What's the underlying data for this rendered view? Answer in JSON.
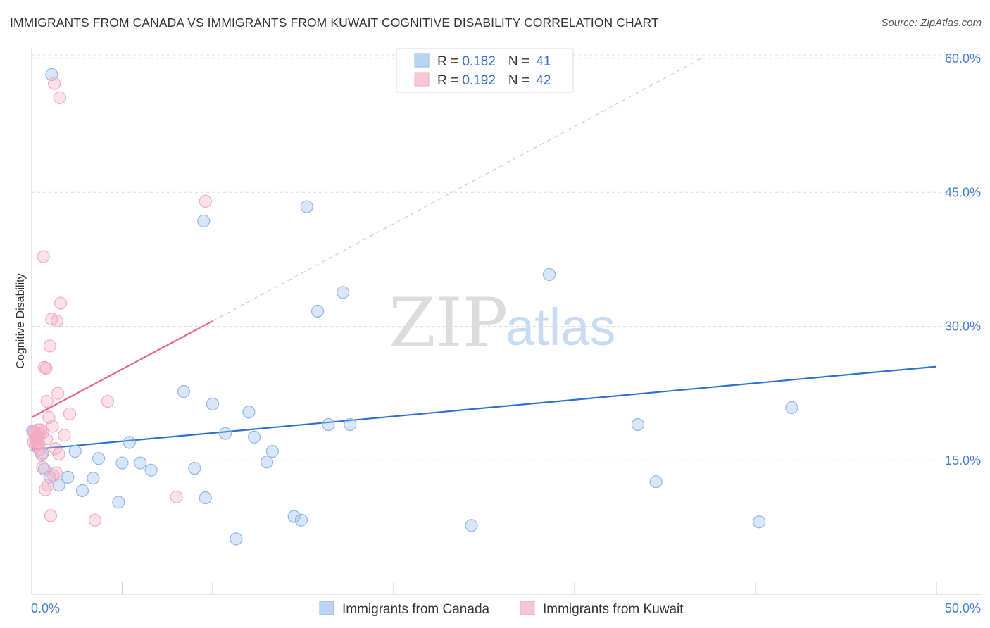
{
  "chart_data": {
    "type": "scatter",
    "title": "IMMIGRANTS FROM CANADA VS IMMIGRANTS FROM KUWAIT COGNITIVE DISABILITY CORRELATION CHART",
    "source": "Source: ZipAtlas.com",
    "xlabel": "",
    "ylabel": "Cognitive Disability",
    "xlim": [
      0,
      50
    ],
    "ylim": [
      0,
      63
    ],
    "x_tick_labels": [
      "0.0%",
      "50.0%"
    ],
    "y_ticks": [
      15,
      30,
      45,
      60
    ],
    "y_tick_labels": [
      "15.0%",
      "30.0%",
      "45.0%",
      "60.0%"
    ],
    "grid": true,
    "watermark": {
      "zip": "ZIP",
      "atlas": "atlas"
    },
    "legend_stats": [
      {
        "r_label": "R = ",
        "r_value": "0.182",
        "n_label": "N = ",
        "n_value": "41"
      },
      {
        "r_label": "R = ",
        "r_value": "0.192",
        "n_label": "N = ",
        "n_value": "42"
      }
    ],
    "series": [
      {
        "name": "Immigrants from Canada",
        "color": "#8fb8ea",
        "line_color": "#2f6fce",
        "trend": {
          "x0": 0,
          "y0": 16.2,
          "x1": 50,
          "y1": 25.5
        },
        "points": [
          [
            0.1,
            18.2
          ],
          [
            0.3,
            17.6
          ],
          [
            0.6,
            15.8
          ],
          [
            0.7,
            14.0
          ],
          [
            1.0,
            13.1
          ],
          [
            1.1,
            58.2
          ],
          [
            1.5,
            12.2
          ],
          [
            2.0,
            13.1
          ],
          [
            2.4,
            16.0
          ],
          [
            2.8,
            11.6
          ],
          [
            3.4,
            13.0
          ],
          [
            3.7,
            15.2
          ],
          [
            4.8,
            10.3
          ],
          [
            5.0,
            14.7
          ],
          [
            5.4,
            17.0
          ],
          [
            6.0,
            14.7
          ],
          [
            6.6,
            13.9
          ],
          [
            8.4,
            22.7
          ],
          [
            9.0,
            14.1
          ],
          [
            9.5,
            41.8
          ],
          [
            9.6,
            10.8
          ],
          [
            10.0,
            21.3
          ],
          [
            10.7,
            18.0
          ],
          [
            11.3,
            6.2
          ],
          [
            12.0,
            20.4
          ],
          [
            12.3,
            17.6
          ],
          [
            13.0,
            14.8
          ],
          [
            13.3,
            16.0
          ],
          [
            14.5,
            8.7
          ],
          [
            14.9,
            8.3
          ],
          [
            15.2,
            43.4
          ],
          [
            15.8,
            31.7
          ],
          [
            16.4,
            19.0
          ],
          [
            17.2,
            33.8
          ],
          [
            17.6,
            19.0
          ],
          [
            24.3,
            7.7
          ],
          [
            28.6,
            35.8
          ],
          [
            33.5,
            19.0
          ],
          [
            34.5,
            12.6
          ],
          [
            40.2,
            8.1
          ],
          [
            42.0,
            20.9
          ]
        ]
      },
      {
        "name": "Immigrants from Kuwait",
        "color": "#f4a9c0",
        "line_color": "#e46591",
        "trend": {
          "x0": 0,
          "y0": 19.8,
          "x1": 10,
          "y1": 30.6
        },
        "trend_extension": {
          "x0": 10,
          "y0": 30.6,
          "x1": 37,
          "y1": 60.0
        },
        "points": [
          [
            0.05,
            18.3
          ],
          [
            0.1,
            17.1
          ],
          [
            0.15,
            18.0
          ],
          [
            0.2,
            16.6
          ],
          [
            0.25,
            17.6
          ],
          [
            0.3,
            17.0
          ],
          [
            0.35,
            18.4
          ],
          [
            0.4,
            16.8
          ],
          [
            0.45,
            17.9
          ],
          [
            0.5,
            18.4
          ],
          [
            0.55,
            15.6
          ],
          [
            0.6,
            14.2
          ],
          [
            0.65,
            37.8
          ],
          [
            0.7,
            25.4
          ],
          [
            0.75,
            11.7
          ],
          [
            0.8,
            25.3
          ],
          [
            0.85,
            21.6
          ],
          [
            0.9,
            12.2
          ],
          [
            0.95,
            19.8
          ],
          [
            1.0,
            27.8
          ],
          [
            1.05,
            8.8
          ],
          [
            1.1,
            30.8
          ],
          [
            1.15,
            18.8
          ],
          [
            1.2,
            13.3
          ],
          [
            1.25,
            57.2
          ],
          [
            1.3,
            16.3
          ],
          [
            1.35,
            13.6
          ],
          [
            1.4,
            30.6
          ],
          [
            1.45,
            22.5
          ],
          [
            1.5,
            15.7
          ],
          [
            1.55,
            55.6
          ],
          [
            1.6,
            32.6
          ],
          [
            1.8,
            17.8
          ],
          [
            2.1,
            20.2
          ],
          [
            3.5,
            8.3
          ],
          [
            4.2,
            21.6
          ],
          [
            8.0,
            10.9
          ],
          [
            9.6,
            44.0
          ],
          [
            0.22,
            17.3
          ],
          [
            0.42,
            16.2
          ],
          [
            0.62,
            18.1
          ],
          [
            0.82,
            17.4
          ]
        ]
      }
    ]
  }
}
